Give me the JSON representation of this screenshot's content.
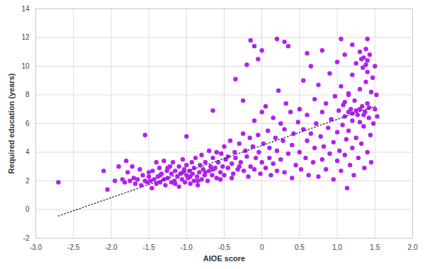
{
  "chart_data": {
    "type": "scatter",
    "x_label": "AIOE score",
    "y_label": "Required education (years)",
    "color": "#b320ee",
    "marker": "circle",
    "grid": true,
    "xlim": [
      -3,
      2
    ],
    "ylim": [
      -2,
      14
    ],
    "xticks": [
      {
        "value": -3,
        "label": "-3.0"
      },
      {
        "value": -2.5,
        "label": "-2.5"
      },
      {
        "value": -2,
        "label": "-2.0"
      },
      {
        "value": -1.5,
        "label": "-1.5"
      },
      {
        "value": -1,
        "label": "-1.0"
      },
      {
        "value": -0.5,
        "label": "-0.5"
      },
      0,
      0.5,
      {
        "value": 1,
        "label": "1.0"
      },
      1.5,
      {
        "value": 2,
        "label": "2.0"
      }
    ],
    "yticks": [
      -2,
      0,
      2,
      4,
      6,
      8,
      10,
      12,
      14
    ],
    "x": [
      -2.7,
      -2.1,
      -2.05,
      -1.55,
      -1.0,
      -0.65,
      -0.35,
      -0.25,
      -0.2,
      -0.15,
      -0.1,
      0.0,
      -0.05,
      0.2,
      0.3,
      0.35,
      0.6,
      0.8,
      1.05,
      1.2,
      1.4,
      1.15,
      -1.95,
      -1.9,
      -1.85,
      -1.82,
      -1.8,
      -1.78,
      -1.75,
      -1.72,
      -1.7,
      -1.68,
      -1.65,
      -1.62,
      -1.6,
      -1.58,
      -1.55,
      -1.52,
      -1.5,
      -1.48,
      -1.46,
      -1.45,
      -1.43,
      -1.4,
      -1.4,
      -1.38,
      -1.36,
      -1.35,
      -1.33,
      -1.3,
      -1.3,
      -1.28,
      -1.26,
      -1.25,
      -1.22,
      -1.2,
      -1.2,
      -1.18,
      -1.16,
      -1.15,
      -1.12,
      -1.1,
      -1.1,
      -1.08,
      -1.06,
      -1.05,
      -1.03,
      -1.02,
      -1.0,
      -1.0,
      -0.98,
      -0.96,
      -0.95,
      -0.93,
      -0.92,
      -0.9,
      -0.9,
      -0.88,
      -0.86,
      -0.85,
      -0.83,
      -0.82,
      -0.8,
      -0.8,
      -0.78,
      -0.76,
      -0.75,
      -0.72,
      -0.7,
      -0.7,
      -0.68,
      -0.66,
      -0.65,
      -0.62,
      -0.6,
      -0.6,
      -0.58,
      -0.55,
      -0.54,
      -0.52,
      -0.5,
      -0.5,
      -0.48,
      -0.45,
      -0.42,
      -0.4,
      -0.38,
      -0.36,
      -0.35,
      -0.32,
      -0.3,
      -0.28,
      -0.25,
      -0.24,
      -0.22,
      -0.2,
      -0.18,
      -0.16,
      -0.15,
      -0.12,
      -0.1,
      -0.1,
      -0.08,
      -0.05,
      -0.04,
      -0.02,
      0.0,
      0.0,
      0.02,
      0.05,
      0.05,
      0.08,
      0.1,
      0.1,
      0.12,
      0.15,
      0.15,
      0.18,
      0.2,
      0.2,
      0.22,
      0.25,
      0.25,
      0.28,
      0.3,
      0.3,
      0.32,
      0.35,
      0.38,
      0.4,
      0.4,
      0.42,
      0.45,
      0.48,
      0.5,
      0.5,
      0.52,
      0.55,
      0.55,
      0.58,
      0.6,
      0.6,
      0.62,
      0.65,
      0.65,
      0.68,
      0.7,
      0.7,
      0.72,
      0.75,
      0.75,
      0.78,
      0.8,
      0.8,
      0.82,
      0.85,
      0.85,
      0.88,
      0.9,
      0.9,
      0.92,
      0.95,
      0.95,
      0.97,
      1.0,
      1.0,
      1.0,
      1.02,
      1.03,
      1.05,
      1.05,
      1.07,
      1.08,
      1.1,
      1.1,
      1.1,
      1.12,
      1.13,
      1.15,
      1.15,
      1.17,
      1.18,
      1.2,
      1.2,
      1.2,
      1.22,
      1.23,
      1.25,
      1.25,
      1.27,
      1.28,
      1.3,
      1.3,
      1.3,
      1.32,
      1.33,
      1.34,
      1.35,
      1.35,
      1.36,
      1.37,
      1.38,
      1.38,
      1.4,
      1.4,
      1.4,
      1.42,
      1.43,
      1.44,
      1.45,
      1.45,
      1.47,
      1.48,
      1.5,
      1.5,
      1.52,
      1.53,
      -1.5,
      -1.35,
      -1.25,
      -1.15,
      -1.05,
      -0.95,
      -0.85,
      -0.75,
      -0.65,
      -0.55,
      -0.45,
      -0.4,
      -0.3,
      1.3,
      1.35,
      1.25,
      1.4,
      1.32,
      1.38,
      1.2,
      1.15,
      1.1,
      1.42
    ],
    "values": [
      1.9,
      2.7,
      1.4,
      5.2,
      5.1,
      6.9,
      9.1,
      7.6,
      10.1,
      11.8,
      11.4,
      11.1,
      10.5,
      11.9,
      11.7,
      11.4,
      10.9,
      11.1,
      11.9,
      11.5,
      11.9,
      8.1,
      2.0,
      3.0,
      2.1,
      1.9,
      3.4,
      2.6,
      2.0,
      3.0,
      2.2,
      1.8,
      2.1,
      2.8,
      1.7,
      2.4,
      2.0,
      1.9,
      2.3,
      2.0,
      1.5,
      2.7,
      2.1,
      1.8,
      3.3,
      2.3,
      2.9,
      1.9,
      2.5,
      2.1,
      3.4,
      1.7,
      2.7,
      2.2,
      3.0,
      1.9,
      2.5,
      3.3,
      2.0,
      2.7,
      2.3,
      1.6,
      3.0,
      2.5,
      2.1,
      3.5,
      2.8,
      1.9,
      2.4,
      3.1,
      2.2,
      2.7,
      1.8,
      3.3,
      2.5,
      2.0,
      2.9,
      3.6,
      2.3,
      1.7,
      2.6,
      3.1,
      2.1,
      3.8,
      2.8,
      2.4,
      3.3,
      2.0,
      2.7,
      4.1,
      3.0,
      2.4,
      3.6,
      2.9,
      2.2,
      4.0,
      3.3,
      2.6,
      3.9,
      3.0,
      2.4,
      4.4,
      3.5,
      2.9,
      4.8,
      3.2,
      2.5,
      4.0,
      3.6,
      2.8,
      4.6,
      3.3,
      5.3,
      2.7,
      4.1,
      3.7,
      2.3,
      5.0,
      3.0,
      4.4,
      6.2,
      2.8,
      3.6,
      5.2,
      4.0,
      2.5,
      6.8,
      3.3,
      4.6,
      7.2,
      2.9,
      5.5,
      3.6,
      4.3,
      2.4,
      6.4,
      3.2,
      5.0,
      4.1,
      2.7,
      8.3,
      6.0,
      3.5,
      4.8,
      5.6,
      2.6,
      7.4,
      3.9,
      6.8,
      4.5,
      2.2,
      5.3,
      3.1,
      6.1,
      4.0,
      7.0,
      2.8,
      5.6,
      9.0,
      3.6,
      6.6,
      4.8,
      2.4,
      10.0,
      5.3,
      3.3,
      7.7,
      4.3,
      6.0,
      2.3,
      8.7,
      5.1,
      3.5,
      6.8,
      4.4,
      7.4,
      2.8,
      5.7,
      9.5,
      3.9,
      6.3,
      4.7,
      2.1,
      7.9,
      5.4,
      10.3,
      3.4,
      6.9,
      4.1,
      8.6,
      2.7,
      5.9,
      7.3,
      3.8,
      10.8,
      6.5,
      4.9,
      1.5,
      8.0,
      5.5,
      3.1,
      7.0,
      6.2,
      9.4,
      4.3,
      2.4,
      7.6,
      5.0,
      10.2,
      6.6,
      3.6,
      8.4,
      6.1,
      11.0,
      4.6,
      7.2,
      9.9,
      5.8,
      10.6,
      2.9,
      6.8,
      8.9,
      10.1,
      7.4,
      4.0,
      9.6,
      6.4,
      10.8,
      5.2,
      8.2,
      3.3,
      9.2,
      6.0,
      7.0,
      10.0,
      8.0,
      6.5,
      2.6,
      2.4,
      2.9,
      1.8,
      2.6,
      2.3,
      2.0,
      2.6,
      2.8,
      2.1,
      3.7,
      2.2,
      3.0,
      7.0,
      6.6,
      6.9,
      10.4,
      10.5,
      11.2,
      6.7,
      6.8,
      7.5,
      7.1
    ],
    "trend": {
      "x": [
        -2.7,
        1.5
      ],
      "values": [
        -0.45,
        7.2
      ],
      "color": "#2e2e6e",
      "line_style": "dotted"
    }
  }
}
